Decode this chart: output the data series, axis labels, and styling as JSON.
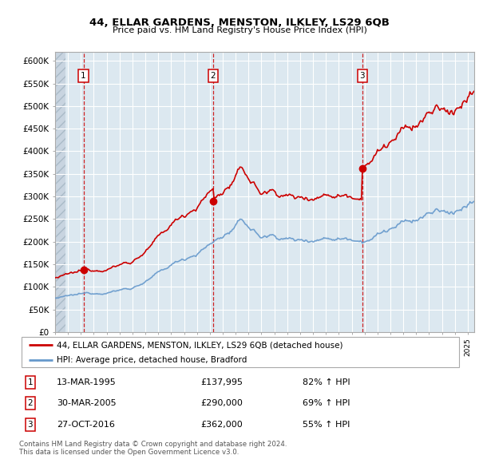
{
  "title": "44, ELLAR GARDENS, MENSTON, ILKLEY, LS29 6QB",
  "subtitle": "Price paid vs. HM Land Registry's House Price Index (HPI)",
  "ylabel_ticks": [
    0,
    50000,
    100000,
    150000,
    200000,
    250000,
    300000,
    350000,
    400000,
    450000,
    500000,
    550000,
    600000
  ],
  "ylabel_labels": [
    "£0",
    "£50K",
    "£100K",
    "£150K",
    "£200K",
    "£250K",
    "£300K",
    "£350K",
    "£400K",
    "£450K",
    "£500K",
    "£550K",
    "£600K"
  ],
  "ylim": [
    0,
    620000
  ],
  "xlim_start": 1993.0,
  "xlim_end": 2025.5,
  "purchases": [
    {
      "num": 1,
      "date_num": 1995.2,
      "price": 137995,
      "label": "13-MAR-1995",
      "price_str": "£137,995",
      "hpi_str": "82% ↑ HPI"
    },
    {
      "num": 2,
      "date_num": 2005.25,
      "price": 290000,
      "label": "30-MAR-2005",
      "price_str": "£290,000",
      "hpi_str": "69% ↑ HPI"
    },
    {
      "num": 3,
      "date_num": 2016.82,
      "price": 362000,
      "label": "27-OCT-2016",
      "price_str": "£362,000",
      "hpi_str": "55% ↑ HPI"
    }
  ],
  "legend_line1": "44, ELLAR GARDENS, MENSTON, ILKLEY, LS29 6QB (detached house)",
  "legend_line2": "HPI: Average price, detached house, Bradford",
  "footer1": "Contains HM Land Registry data © Crown copyright and database right 2024.",
  "footer2": "This data is licensed under the Open Government Licence v3.0.",
  "red_color": "#cc0000",
  "blue_color": "#6699cc",
  "bg_color": "#dce8f0",
  "grid_color": "#ffffff"
}
